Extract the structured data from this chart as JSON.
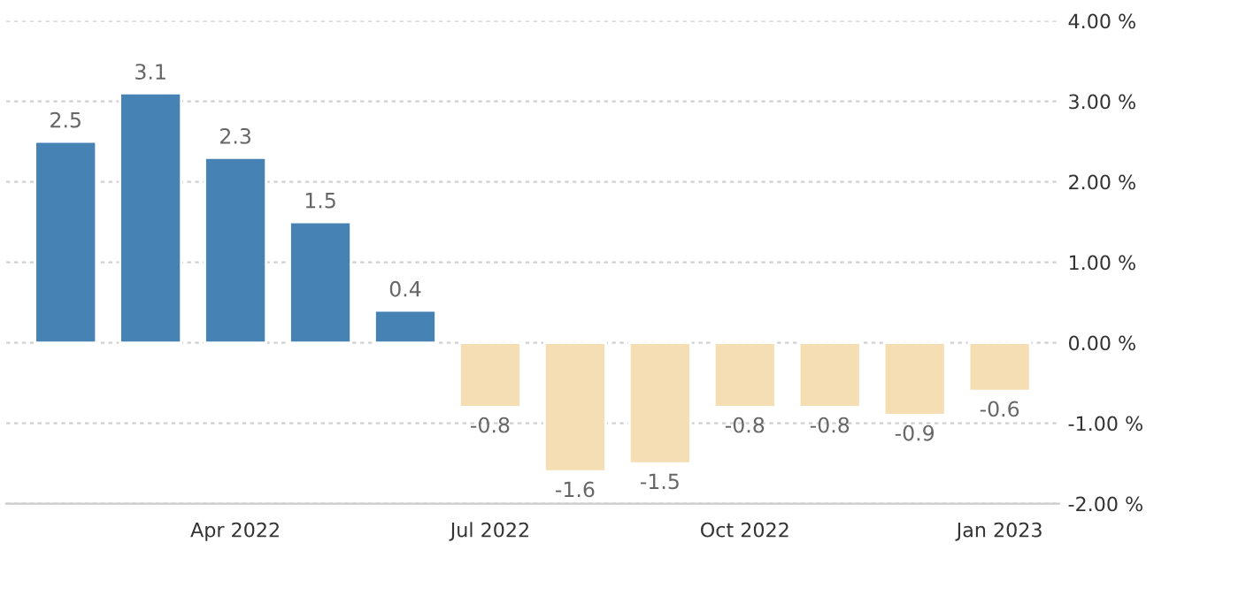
{
  "chart_data": {
    "type": "bar",
    "categories": [
      null,
      null,
      "Apr 2022",
      null,
      null,
      "Jul 2022",
      null,
      null,
      "Oct 2022",
      null,
      null,
      "Jan 2023"
    ],
    "values": [
      2.5,
      3.1,
      2.3,
      1.5,
      0.4,
      -0.8,
      -1.6,
      -1.5,
      -0.8,
      -0.8,
      -0.9,
      -0.6
    ],
    "colors": [
      "#4682b4",
      "#4682b4",
      "#4682b4",
      "#4682b4",
      "#4682b4",
      "#f5deb3",
      "#f5deb3",
      "#f5deb3",
      "#f5deb3",
      "#f5deb3",
      "#f5deb3",
      "#f5deb3"
    ],
    "ylim": [
      -2,
      4
    ],
    "yticks": [
      {
        "value": -2,
        "label": "-2.00 %"
      },
      {
        "value": -1,
        "label": "-1.00 %"
      },
      {
        "value": 0,
        "label": "0.00 %"
      },
      {
        "value": 1,
        "label": "1.00 %"
      },
      {
        "value": 2,
        "label": "2.00 %"
      },
      {
        "value": 3,
        "label": "3.00 %"
      },
      {
        "value": 4,
        "label": "4.00 %"
      }
    ],
    "grid": "y",
    "data_labels": true
  }
}
